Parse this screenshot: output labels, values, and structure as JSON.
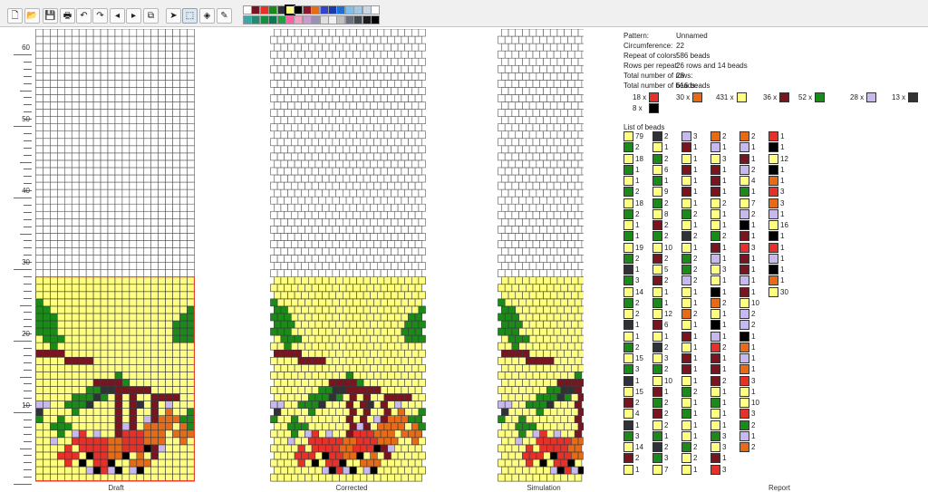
{
  "toolbar": {
    "buttons": [
      {
        "name": "new-file-button",
        "icon": "new-file-icon",
        "glyph": "🗋"
      },
      {
        "name": "open-button",
        "icon": "folder-icon",
        "glyph": "📂"
      },
      {
        "name": "save-button",
        "icon": "floppy-icon",
        "glyph": "💾"
      },
      {
        "name": "print-button",
        "icon": "printer-icon",
        "glyph": "🖶"
      },
      {
        "name": "undo-button",
        "icon": "undo-icon",
        "glyph": "↶"
      },
      {
        "name": "redo-button",
        "icon": "redo-icon",
        "glyph": "↷"
      },
      {
        "name": "arrow-left-button",
        "icon": "triangle-left-icon",
        "glyph": "◂"
      },
      {
        "name": "arrow-right-button",
        "icon": "triangle-right-icon",
        "glyph": "▸"
      },
      {
        "name": "copy-button",
        "icon": "copy-icon",
        "glyph": "⧉"
      },
      {
        "name": "pointer-tool-button",
        "icon": "pointer-icon",
        "glyph": "➤"
      },
      {
        "name": "select-tool-button",
        "icon": "select-rect-icon",
        "glyph": "⬚"
      },
      {
        "name": "fill-tool-button",
        "icon": "paint-bucket-icon",
        "glyph": "◈"
      },
      {
        "name": "pipette-tool-button",
        "icon": "pipette-icon",
        "glyph": "✎"
      }
    ],
    "palette_top": [
      "#ffffff",
      "#7a1420",
      "#e8302a",
      "#1a8a18",
      "#2f3338",
      "#ffff80",
      "#000000",
      "#8a1a2a",
      "#e86a14",
      "#3444cc",
      "#1a3aa8",
      "#1a70d8",
      "#7cc0f0",
      "#a0c8e8",
      "#c8d8e8",
      "#ffffff"
    ],
    "palette_bottom": [
      "#3aa8a8",
      "#228a70",
      "#119040",
      "#0a7850",
      "#20a040",
      "#ff60a8",
      "#f0a0c0",
      "#c89ccc",
      "#9890b8",
      "#e0e0e0",
      "#f0f0f0",
      "#c0c0c0",
      "#6a7080",
      "#404850",
      "#1a1a20",
      "#000000"
    ],
    "palette_selected_index": 5
  },
  "ruler": {
    "ticks": [
      60,
      50,
      40,
      30,
      20,
      10
    ]
  },
  "views": {
    "draft": "Draft",
    "corrected": "Corrected",
    "simulation": "Simulation",
    "report": "Report"
  },
  "report": {
    "pattern_label": "Pattern:",
    "pattern": "Unnamed",
    "circ_label": "Circumference:",
    "circ": "22",
    "repeat_label": "Repeat of colors:",
    "repeat": "586 beads",
    "rows_per_label": "Rows per repeat:",
    "rows_per": "26 rows and 14 beads",
    "total_rows_label": "Total number of rows:",
    "total_rows": "28",
    "total_beads_label": "Total number of beads:",
    "total_beads": "616 beads",
    "summary": [
      {
        "count": "18 x",
        "color": "#e8302a"
      },
      {
        "count": "30 x",
        "color": "#e86a14"
      },
      {
        "count": "431 x",
        "color": "#ffff80"
      },
      {
        "count": "36 x",
        "color": "#7a1420"
      },
      {
        "count": "52 x",
        "color": "#1a8a18"
      },
      {
        "count": "28 x",
        "color": "#c8b8f0"
      },
      {
        "count": "13 x",
        "color": "#2f3338"
      },
      {
        "count": "8 x",
        "color": "#000000"
      }
    ],
    "list_title": "List of beads",
    "bead_columns": [
      [
        [
          "Y",
          "79"
        ],
        [
          "G",
          "2"
        ],
        [
          "Y",
          "18"
        ],
        [
          "G",
          "1"
        ],
        [
          "Y",
          "1"
        ],
        [
          "G",
          "2"
        ],
        [
          "Y",
          "18"
        ],
        [
          "G",
          "2"
        ],
        [
          "Y",
          "1"
        ],
        [
          "G",
          "1"
        ],
        [
          "Y",
          "19"
        ],
        [
          "G",
          "2"
        ],
        [
          "D",
          "1"
        ],
        [
          "G",
          "3"
        ],
        [
          "Y",
          "14"
        ],
        [
          "G",
          "2"
        ],
        [
          "Y",
          "2"
        ],
        [
          "D",
          "1"
        ],
        [
          "Y",
          "1"
        ],
        [
          "G",
          "2"
        ],
        [
          "Y",
          "15"
        ],
        [
          "G",
          "3"
        ],
        [
          "D",
          "1"
        ],
        [
          "Y",
          "15"
        ],
        [
          "M",
          "2"
        ],
        [
          "Y",
          "4"
        ],
        [
          "D",
          "1"
        ],
        [
          "G",
          "3"
        ],
        [
          "Y",
          "14"
        ],
        [
          "M",
          "2"
        ],
        [
          "Y",
          "1"
        ]
      ],
      [
        [
          "D",
          "2"
        ],
        [
          "Y",
          "1"
        ],
        [
          "G",
          "2"
        ],
        [
          "Y",
          "6"
        ],
        [
          "G",
          "1"
        ],
        [
          "Y",
          "9"
        ],
        [
          "G",
          "2"
        ],
        [
          "Y",
          "8"
        ],
        [
          "M",
          "2"
        ],
        [
          "G",
          "2"
        ],
        [
          "Y",
          "10"
        ],
        [
          "M",
          "2"
        ],
        [
          "Y",
          "5"
        ],
        [
          "M",
          "2"
        ],
        [
          "Y",
          "1"
        ],
        [
          "G",
          "1"
        ],
        [
          "Y",
          "12"
        ],
        [
          "M",
          "6"
        ],
        [
          "Y",
          "1"
        ],
        [
          "D",
          "2"
        ],
        [
          "Y",
          "3"
        ],
        [
          "G",
          "2"
        ],
        [
          "Y",
          "10"
        ],
        [
          "M",
          "1"
        ],
        [
          "G",
          "2"
        ],
        [
          "M",
          "2"
        ],
        [
          "Y",
          "2"
        ],
        [
          "G",
          "1"
        ],
        [
          "D",
          "2"
        ],
        [
          "G",
          "3"
        ],
        [
          "Y",
          "7"
        ]
      ],
      [
        [
          "L",
          "3"
        ],
        [
          "M",
          "1"
        ],
        [
          "Y",
          "1"
        ],
        [
          "M",
          "1"
        ],
        [
          "Y",
          "1"
        ],
        [
          "M",
          "1"
        ],
        [
          "Y",
          "1"
        ],
        [
          "G",
          "2"
        ],
        [
          "Y",
          "1"
        ],
        [
          "D",
          "2"
        ],
        [
          "Y",
          "1"
        ],
        [
          "G",
          "2"
        ],
        [
          "G",
          "2"
        ],
        [
          "L",
          "2"
        ],
        [
          "Y",
          "1"
        ],
        [
          "Y",
          "1"
        ],
        [
          "O",
          "2"
        ],
        [
          "Y",
          "1"
        ],
        [
          "M",
          "1"
        ],
        [
          "Y",
          "1"
        ],
        [
          "M",
          "1"
        ],
        [
          "M",
          "1"
        ],
        [
          "Y",
          "1"
        ],
        [
          "G",
          "2"
        ],
        [
          "Y",
          "1"
        ],
        [
          "G",
          "1"
        ],
        [
          "Y",
          "1"
        ],
        [
          "Y",
          "1"
        ],
        [
          "G",
          "2"
        ],
        [
          "Y",
          "2"
        ],
        [
          "Y",
          "1"
        ]
      ],
      [
        [
          "O",
          "2"
        ],
        [
          "L",
          "1"
        ],
        [
          "Y",
          "3"
        ],
        [
          "M",
          "1"
        ],
        [
          "M",
          "1"
        ],
        [
          "M",
          "1"
        ],
        [
          "Y",
          "2"
        ],
        [
          "Y",
          "1"
        ],
        [
          "Y",
          "1"
        ],
        [
          "G",
          "2"
        ],
        [
          "M",
          "1"
        ],
        [
          "L",
          "1"
        ],
        [
          "Y",
          "3"
        ],
        [
          "Y",
          "1"
        ],
        [
          "K",
          "1"
        ],
        [
          "O",
          "2"
        ],
        [
          "Y",
          "1"
        ],
        [
          "K",
          "1"
        ],
        [
          "L",
          "1"
        ],
        [
          "R",
          "2"
        ],
        [
          "M",
          "1"
        ],
        [
          "M",
          "1"
        ],
        [
          "M",
          "2"
        ],
        [
          "Y",
          "1"
        ],
        [
          "G",
          "1"
        ],
        [
          "Y",
          "1"
        ],
        [
          "Y",
          "1"
        ],
        [
          "G",
          "3"
        ],
        [
          "Y",
          "3"
        ],
        [
          "M",
          "1"
        ],
        [
          "R",
          "3"
        ]
      ],
      [
        [
          "O",
          "2"
        ],
        [
          "L",
          "1"
        ],
        [
          "M",
          "1"
        ],
        [
          "L",
          "2"
        ],
        [
          "Y",
          "4"
        ],
        [
          "G",
          "1"
        ],
        [
          "Y",
          "7"
        ],
        [
          "L",
          "2"
        ],
        [
          "K",
          "1"
        ],
        [
          "M",
          "1"
        ],
        [
          "R",
          "3"
        ],
        [
          "M",
          "1"
        ],
        [
          "M",
          "1"
        ],
        [
          "L",
          "1"
        ],
        [
          "M",
          "1"
        ],
        [
          "Y",
          "10"
        ],
        [
          "L",
          "2"
        ],
        [
          "L",
          "2"
        ],
        [
          "K",
          "1"
        ],
        [
          "O",
          "1"
        ],
        [
          "L",
          "1"
        ],
        [
          "O",
          "1"
        ],
        [
          "R",
          "3"
        ],
        [
          "Y",
          "1"
        ],
        [
          "Y",
          "10"
        ],
        [
          "R",
          "3"
        ],
        [
          "G",
          "2"
        ],
        [
          "L",
          "1"
        ],
        [
          "O",
          "2"
        ]
      ],
      [
        [
          "R",
          "1"
        ],
        [
          "K",
          "1"
        ],
        [
          "Y",
          "12"
        ],
        [
          "K",
          "1"
        ],
        [
          "O",
          "1"
        ],
        [
          "R",
          "3"
        ],
        [
          "O",
          "3"
        ],
        [
          "L",
          "1"
        ],
        [
          "Y",
          "16"
        ],
        [
          "K",
          "1"
        ],
        [
          "R",
          "1"
        ],
        [
          "L",
          "1"
        ],
        [
          "K",
          "1"
        ],
        [
          "O",
          "1"
        ],
        [
          "Y",
          "30"
        ]
      ]
    ]
  }
}
